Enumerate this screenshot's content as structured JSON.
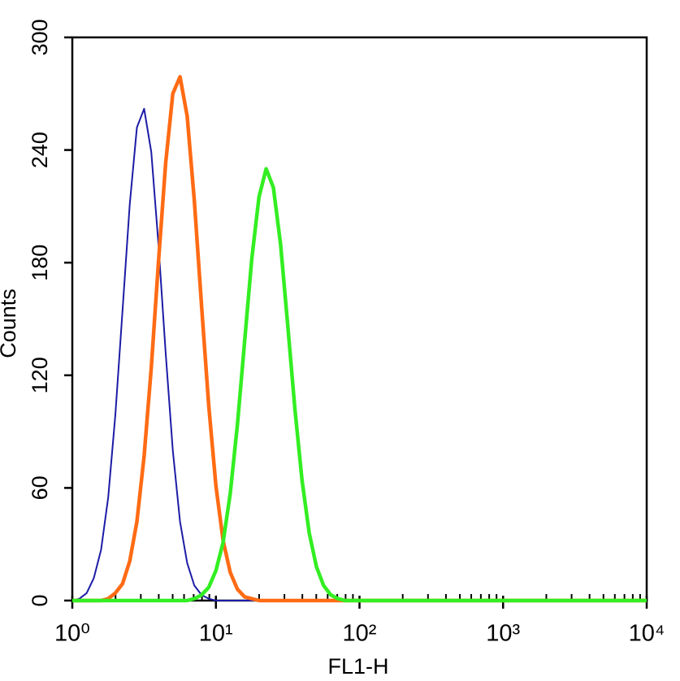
{
  "chart_data": {
    "type": "line",
    "log_x": true,
    "x_label": "FL1-H",
    "y_label": "Counts",
    "x": [
      1,
      1.122,
      1.259,
      1.413,
      1.585,
      1.778,
      1.995,
      2.239,
      2.512,
      2.818,
      3.162,
      3.548,
      3.981,
      4.467,
      5.012,
      5.623,
      6.31,
      7.079,
      7.943,
      8.913,
      10,
      11.22,
      12.59,
      14.13,
      15.85,
      17.78,
      19.95,
      22.39,
      25.12,
      28.18,
      31.62,
      35.48,
      39.81,
      44.67,
      50.12,
      56.23,
      63.1,
      70.79,
      79.43,
      89.13,
      100,
      1000,
      10000
    ],
    "series": [
      {
        "color": "#1c1ca6",
        "width": 2,
        "values": [
          0,
          1,
          4,
          12,
          27,
          55,
          99,
          155,
          211,
          252,
          262,
          239,
          190,
          132,
          80,
          42,
          20,
          8,
          3,
          1,
          0,
          0,
          0,
          0,
          0,
          0,
          0,
          0,
          0,
          0,
          0,
          0,
          0,
          0,
          0,
          0,
          0,
          0,
          0,
          0,
          0,
          0,
          0
        ]
      },
      {
        "color": "#ff6b14",
        "width": 4.5,
        "values": [
          0,
          0,
          0,
          0,
          0,
          1,
          4,
          9,
          21,
          42,
          77,
          124,
          180,
          233,
          270,
          279,
          258,
          213,
          157,
          104,
          61,
          32,
          15,
          6,
          2,
          1,
          0,
          0,
          0,
          0,
          0,
          0,
          0,
          0,
          0,
          0,
          0,
          0,
          0,
          0,
          0,
          0,
          0
        ]
      },
      {
        "color": "#33ee22",
        "width": 4.5,
        "values": [
          0,
          0,
          0,
          0,
          0,
          0,
          0,
          0,
          0,
          0,
          0,
          0,
          0,
          0,
          0,
          0,
          0,
          1,
          3,
          7,
          16,
          31,
          57,
          94,
          138,
          182,
          215,
          230,
          220,
          190,
          147,
          102,
          64,
          36,
          18,
          8,
          3,
          1,
          0,
          0,
          0,
          0,
          0
        ]
      }
    ],
    "xlim": [
      1,
      10000
    ],
    "xticks": [
      {
        "value": 1,
        "label": "10⁰"
      },
      {
        "value": 10,
        "label": "10¹"
      },
      {
        "value": 100,
        "label": "10²"
      },
      {
        "value": 1000,
        "label": "10³"
      },
      {
        "value": 10000,
        "label": "10⁴"
      }
    ],
    "x_minor_ticks": [
      2,
      3,
      4,
      5,
      6,
      7,
      8,
      9,
      20,
      30,
      40,
      50,
      60,
      70,
      80,
      90,
      200,
      300,
      400,
      500,
      600,
      700,
      800,
      900,
      2000,
      3000,
      4000,
      5000,
      6000,
      7000,
      8000,
      9000
    ],
    "ylim": [
      0,
      300
    ],
    "yticks": [
      0,
      60,
      120,
      180,
      240,
      300
    ]
  }
}
